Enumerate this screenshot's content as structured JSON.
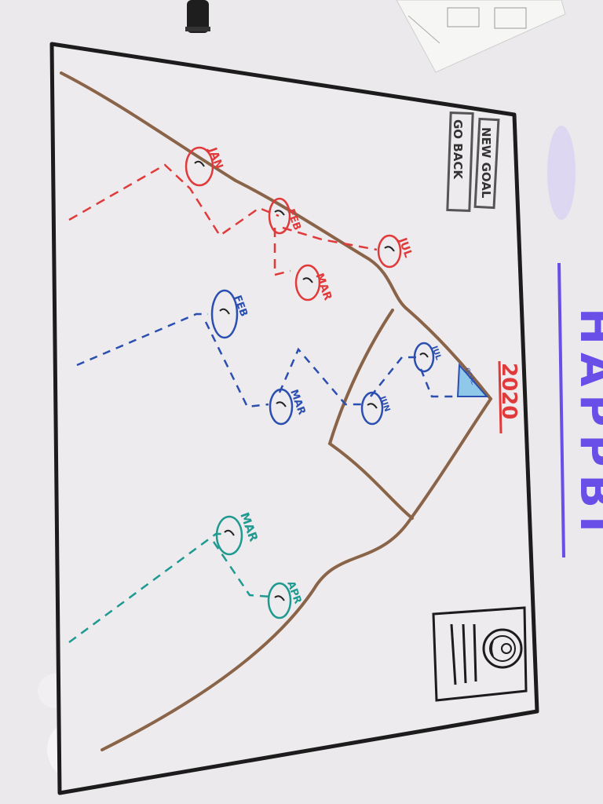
{
  "app": {
    "title": "HAPPBI"
  },
  "screen": {
    "year": "2020",
    "goal_label": "GOAL"
  },
  "buttons": {
    "new_goal": "NEW GOAL",
    "go_back": "GO BACK"
  },
  "colors": {
    "board": "#ece9ec",
    "frame": "#1c1c1c",
    "mountain": "#8a6448",
    "red": "#e03a3a",
    "blue": "#2a4fb0",
    "teal": "#1f9a90",
    "title": "#7a5cf0"
  },
  "paths": {
    "red": [
      {
        "label": "JAN",
        "color": "red"
      },
      {
        "label": "FEB",
        "color": "red"
      },
      {
        "label": "MAR",
        "color": "red"
      },
      {
        "label": "JUL",
        "color": "red"
      }
    ],
    "blue": [
      {
        "label": "FEB",
        "color": "blue"
      },
      {
        "label": "MAR",
        "color": "blue"
      },
      {
        "label": "JUN",
        "color": "blue"
      },
      {
        "label": "JUL",
        "color": "blue"
      }
    ],
    "teal": [
      {
        "label": "MAR",
        "color": "teal"
      },
      {
        "label": "APR",
        "color": "teal"
      }
    ]
  },
  "profile_card": {
    "icon": "profile-icon"
  }
}
